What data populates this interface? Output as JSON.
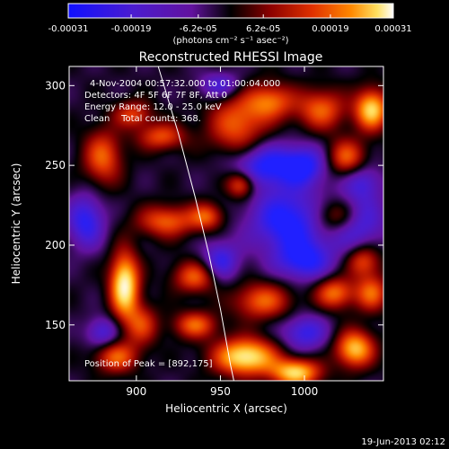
{
  "chart_data": {
    "type": "heatmap",
    "title": "Reconstructed RHESSI Image",
    "xlabel": "Heliocentric X (arcsec)",
    "ylabel": "Heliocentric Y (arcsec)",
    "xlim": [
      860,
      1047
    ],
    "ylim": [
      115,
      312
    ],
    "x_ticks": [
      900,
      950,
      1000
    ],
    "y_ticks": [
      150,
      200,
      250,
      300
    ],
    "colorbar": {
      "range": [
        -0.00031,
        0.00031
      ],
      "tick_labels": [
        "-0.00031",
        "-0.00019",
        "-6.2e-05",
        "6.2e-05",
        "0.00019",
        "0.00031"
      ],
      "tick_values": [
        -0.00031,
        -0.00019,
        -6.2e-05,
        6.2e-05,
        0.00019,
        0.00031
      ],
      "units_label": "(photons cm⁻² s⁻¹ asec⁻²)"
    },
    "annotations": [
      "4-Nov-2004 00:57:32.000 to 01:00:04.000",
      "Detectors: 4F 5F 6F 7F 8F, Att 0",
      "Energy Range: 12.0 - 25.0 keV",
      "Clean    Total counts: 368."
    ],
    "peak_label": "Position of Peak = [892,175]",
    "peak": [
      892,
      175
    ],
    "limb_curve": [
      [
        913,
        312
      ],
      [
        925,
        270
      ],
      [
        935,
        230
      ],
      [
        943,
        195
      ],
      [
        950,
        160
      ],
      [
        956,
        125
      ],
      [
        958,
        115
      ]
    ],
    "sources": [
      {
        "x": 893,
        "y": 175,
        "amp": 1.0,
        "sx": 6,
        "sy": 14
      },
      {
        "x": 888,
        "y": 130,
        "amp": 0.55,
        "sx": 9,
        "sy": 7
      },
      {
        "x": 903,
        "y": 150,
        "amp": 0.45,
        "sx": 7,
        "sy": 9
      },
      {
        "x": 880,
        "y": 255,
        "amp": 0.55,
        "sx": 8,
        "sy": 12
      },
      {
        "x": 918,
        "y": 215,
        "amp": 0.55,
        "sx": 12,
        "sy": 7
      },
      {
        "x": 915,
        "y": 268,
        "amp": 0.5,
        "sx": 10,
        "sy": 6
      },
      {
        "x": 898,
        "y": 282,
        "amp": 0.45,
        "sx": 8,
        "sy": 6
      },
      {
        "x": 960,
        "y": 275,
        "amp": 0.55,
        "sx": 12,
        "sy": 14
      },
      {
        "x": 980,
        "y": 290,
        "amp": 0.55,
        "sx": 10,
        "sy": 8
      },
      {
        "x": 1010,
        "y": 285,
        "amp": 0.55,
        "sx": 10,
        "sy": 9
      },
      {
        "x": 1040,
        "y": 285,
        "amp": 0.85,
        "sx": 7,
        "sy": 9
      },
      {
        "x": 1025,
        "y": 255,
        "amp": 0.55,
        "sx": 8,
        "sy": 8
      },
      {
        "x": 962,
        "y": 238,
        "amp": 0.6,
        "sx": 6,
        "sy": 6
      },
      {
        "x": 942,
        "y": 218,
        "amp": 0.5,
        "sx": 7,
        "sy": 6
      },
      {
        "x": 1020,
        "y": 218,
        "amp": 0.6,
        "sx": 10,
        "sy": 8
      },
      {
        "x": 935,
        "y": 180,
        "amp": 0.55,
        "sx": 9,
        "sy": 7
      },
      {
        "x": 935,
        "y": 150,
        "amp": 0.55,
        "sx": 9,
        "sy": 6
      },
      {
        "x": 975,
        "y": 165,
        "amp": 0.55,
        "sx": 12,
        "sy": 8
      },
      {
        "x": 1018,
        "y": 170,
        "amp": 0.6,
        "sx": 8,
        "sy": 7
      },
      {
        "x": 1040,
        "y": 170,
        "amp": 0.55,
        "sx": 7,
        "sy": 8
      },
      {
        "x": 1035,
        "y": 190,
        "amp": 0.5,
        "sx": 7,
        "sy": 7
      },
      {
        "x": 965,
        "y": 130,
        "amp": 0.95,
        "sx": 13,
        "sy": 8
      },
      {
        "x": 995,
        "y": 120,
        "amp": 0.85,
        "sx": 10,
        "sy": 6
      },
      {
        "x": 1030,
        "y": 135,
        "amp": 0.8,
        "sx": 8,
        "sy": 8
      },
      {
        "x": 1030,
        "y": 215,
        "amp": -0.55,
        "sx": 12,
        "sy": 12
      },
      {
        "x": 990,
        "y": 215,
        "amp": -0.6,
        "sx": 16,
        "sy": 14
      },
      {
        "x": 975,
        "y": 250,
        "amp": -0.55,
        "sx": 14,
        "sy": 10
      },
      {
        "x": 1000,
        "y": 250,
        "amp": -0.5,
        "sx": 10,
        "sy": 9
      },
      {
        "x": 950,
        "y": 190,
        "amp": -0.45,
        "sx": 8,
        "sy": 9
      },
      {
        "x": 1000,
        "y": 190,
        "amp": -0.5,
        "sx": 12,
        "sy": 9
      },
      {
        "x": 870,
        "y": 215,
        "amp": -0.5,
        "sx": 8,
        "sy": 12
      },
      {
        "x": 880,
        "y": 145,
        "amp": -0.4,
        "sx": 7,
        "sy": 7
      },
      {
        "x": 1000,
        "y": 145,
        "amp": -0.45,
        "sx": 10,
        "sy": 8
      },
      {
        "x": 950,
        "y": 300,
        "amp": -0.4,
        "sx": 9,
        "sy": 6
      },
      {
        "x": 1035,
        "y": 240,
        "amp": -0.35,
        "sx": 8,
        "sy": 8
      }
    ],
    "colormap": [
      "#2020ff",
      "#4b1cd0",
      "#62129e",
      "#000000",
      "#8a0000",
      "#e03000",
      "#ff8800",
      "#ffe060",
      "#ffffff"
    ]
  },
  "footer": {
    "date": "19-Jun-2013 02:12"
  }
}
